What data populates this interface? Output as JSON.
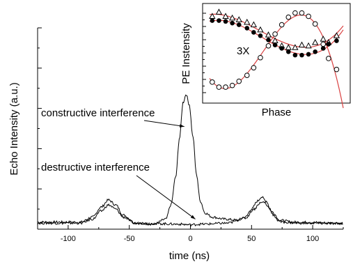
{
  "chart_data": [
    {
      "type": "line",
      "xlabel": "time (ns)",
      "ylabel": "Echo Intensity (a.u.)",
      "xlim": [
        -125,
        125
      ],
      "ylim": [
        0,
        10
      ],
      "x_ticks": [
        -100,
        -50,
        0,
        50,
        100
      ],
      "x_tick_labels": [
        "-100",
        "-50",
        "0",
        "50",
        "100"
      ],
      "y_tick_labels_shown": false,
      "annotations": [
        {
          "text": "constructive interference",
          "points_to": {
            "x": -5,
            "y": 5.1
          }
        },
        {
          "text": "destructive interference",
          "points_to": {
            "x": 4,
            "y": 0.5
          }
        }
      ],
      "series": [
        {
          "style": "solid",
          "description_points": [
            [
              -125,
              0.35
            ],
            [
              -90,
              0.35
            ],
            [
              -80,
              0.6
            ],
            [
              -73,
              1.1
            ],
            [
              -67,
              1.45
            ],
            [
              -61,
              1.2
            ],
            [
              -55,
              0.7
            ],
            [
              -45,
              0.3
            ],
            [
              -30,
              0.25
            ],
            [
              -20,
              0.5
            ],
            [
              -16,
              1.2
            ],
            [
              -12,
              2.6
            ],
            [
              -9,
              4.5
            ],
            [
              -6,
              6.3
            ],
            [
              -3.5,
              6.7
            ],
            [
              -1,
              6.2
            ],
            [
              2,
              4.6
            ],
            [
              5,
              2.7
            ],
            [
              8,
              1.4
            ],
            [
              12,
              0.8
            ],
            [
              18,
              0.6
            ],
            [
              28,
              0.5
            ],
            [
              38,
              0.45
            ],
            [
              45,
              0.6
            ],
            [
              50,
              1.0
            ],
            [
              55,
              1.4
            ],
            [
              58,
              1.6
            ],
            [
              62,
              1.4
            ],
            [
              66,
              0.9
            ],
            [
              72,
              0.45
            ],
            [
              85,
              0.35
            ],
            [
              125,
              0.3
            ]
          ]
        },
        {
          "style": "solid",
          "description_points": [
            [
              -125,
              0.3
            ],
            [
              -90,
              0.3
            ],
            [
              -80,
              0.5
            ],
            [
              -73,
              0.9
            ],
            [
              -67,
              1.2
            ],
            [
              -61,
              1.0
            ],
            [
              -55,
              0.6
            ],
            [
              -45,
              0.3
            ],
            [
              -30,
              0.28
            ],
            [
              -10,
              0.25
            ],
            [
              0,
              0.22
            ],
            [
              10,
              0.25
            ],
            [
              30,
              0.3
            ],
            [
              45,
              0.55
            ],
            [
              52,
              1.0
            ],
            [
              57,
              1.3
            ],
            [
              60,
              1.35
            ],
            [
              64,
              1.1
            ],
            [
              68,
              0.7
            ],
            [
              75,
              0.35
            ],
            [
              90,
              0.3
            ],
            [
              125,
              0.28
            ]
          ]
        }
      ]
    },
    {
      "type": "scatter",
      "xlabel": "Phase",
      "ylabel": "PE Instensity",
      "xlim": [
        0,
        1
      ],
      "ylim": [
        0,
        1
      ],
      "annotations": [
        {
          "text": "3X"
        }
      ],
      "series": [
        {
          "marker": "open-triangle",
          "x": [
            0.02,
            0.07,
            0.12,
            0.17,
            0.22,
            0.28,
            0.33,
            0.38,
            0.44,
            0.49,
            0.54,
            0.59,
            0.64,
            0.69,
            0.74,
            0.79,
            0.85,
            0.89,
            0.95
          ],
          "y": [
            0.93,
            0.98,
            0.93,
            0.91,
            0.89,
            0.86,
            0.83,
            0.77,
            0.71,
            0.64,
            0.58,
            0.56,
            0.56,
            0.59,
            0.58,
            0.62,
            0.66,
            0.62,
            0.7
          ]
        },
        {
          "marker": "filled-circle",
          "x": [
            0.02,
            0.07,
            0.12,
            0.17,
            0.22,
            0.28,
            0.33,
            0.38,
            0.44,
            0.49,
            0.54,
            0.59,
            0.64,
            0.69,
            0.74,
            0.79,
            0.85,
            0.89,
            0.95
          ],
          "y": [
            0.88,
            0.88,
            0.87,
            0.85,
            0.83,
            0.79,
            0.74,
            0.7,
            0.65,
            0.59,
            0.55,
            0.51,
            0.47,
            0.47,
            0.48,
            0.51,
            0.55,
            0.6,
            0.64
          ]
        },
        {
          "marker": "open-circle",
          "x": [
            0.02,
            0.07,
            0.12,
            0.17,
            0.22,
            0.28,
            0.33,
            0.38,
            0.44,
            0.49,
            0.54,
            0.59,
            0.64,
            0.69,
            0.74,
            0.79,
            0.85,
            0.89,
            0.95
          ],
          "y": [
            0.15,
            0.09,
            0.09,
            0.11,
            0.16,
            0.23,
            0.32,
            0.44,
            0.58,
            0.72,
            0.83,
            0.92,
            0.97,
            0.97,
            0.93,
            0.84,
            0.6,
            0.43,
            0.3
          ]
        }
      ],
      "fit_color": "#d94040"
    }
  ],
  "colors": {
    "ink": "#000000",
    "fit": "#d94040",
    "background": "#ffffff"
  }
}
